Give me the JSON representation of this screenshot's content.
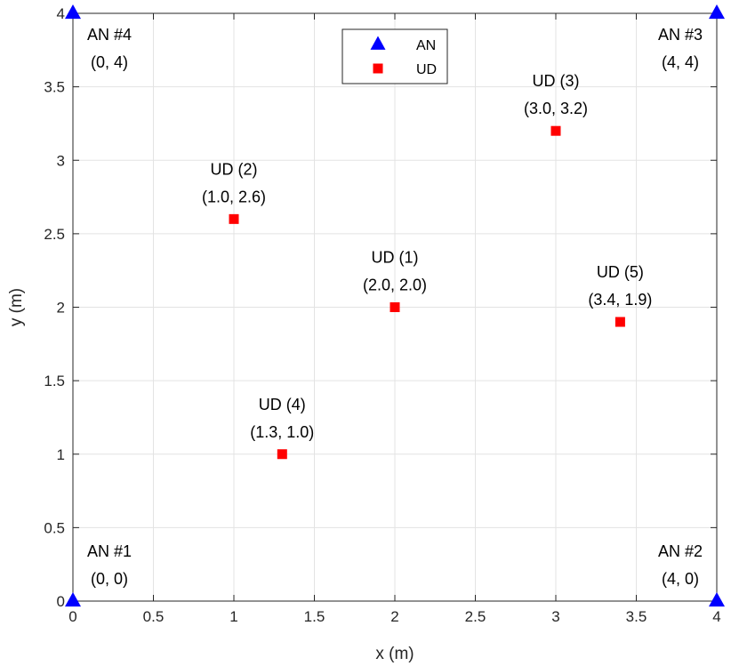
{
  "chart_data": {
    "type": "scatter",
    "xlabel": "x (m)",
    "ylabel": "y (m)",
    "xlim": [
      0,
      4
    ],
    "ylim": [
      0,
      4
    ],
    "xticks": [
      "0",
      "0.5",
      "1",
      "1.5",
      "2",
      "2.5",
      "3",
      "3.5",
      "4"
    ],
    "yticks": [
      "0",
      "0.5",
      "1",
      "1.5",
      "2",
      "2.5",
      "3",
      "3.5",
      "4"
    ],
    "grid": true,
    "legend": {
      "position": "top-center",
      "entries": [
        "AN",
        "UD"
      ]
    },
    "series": [
      {
        "name": "AN",
        "marker": "triangle",
        "color": "#0000ff",
        "points": [
          {
            "x": 0,
            "y": 0,
            "label": "AN #1",
            "coord": "(0, 0)"
          },
          {
            "x": 4,
            "y": 0,
            "label": "AN #2",
            "coord": "(4, 0)"
          },
          {
            "x": 4,
            "y": 4,
            "label": "AN #3",
            "coord": "(4, 4)"
          },
          {
            "x": 0,
            "y": 4,
            "label": "AN #4",
            "coord": "(0, 4)"
          }
        ]
      },
      {
        "name": "UD",
        "marker": "square",
        "color": "#ff0000",
        "points": [
          {
            "x": 2.0,
            "y": 2.0,
            "label": "UD (1)",
            "coord": "(2.0, 2.0)"
          },
          {
            "x": 1.0,
            "y": 2.6,
            "label": "UD (2)",
            "coord": "(1.0, 2.6)"
          },
          {
            "x": 3.0,
            "y": 3.2,
            "label": "UD (3)",
            "coord": "(3.0, 3.2)"
          },
          {
            "x": 1.3,
            "y": 1.0,
            "label": "UD (4)",
            "coord": "(1.3, 1.0)"
          },
          {
            "x": 3.4,
            "y": 1.9,
            "label": "UD (5)",
            "coord": "(3.4, 1.9)"
          }
        ]
      }
    ]
  }
}
